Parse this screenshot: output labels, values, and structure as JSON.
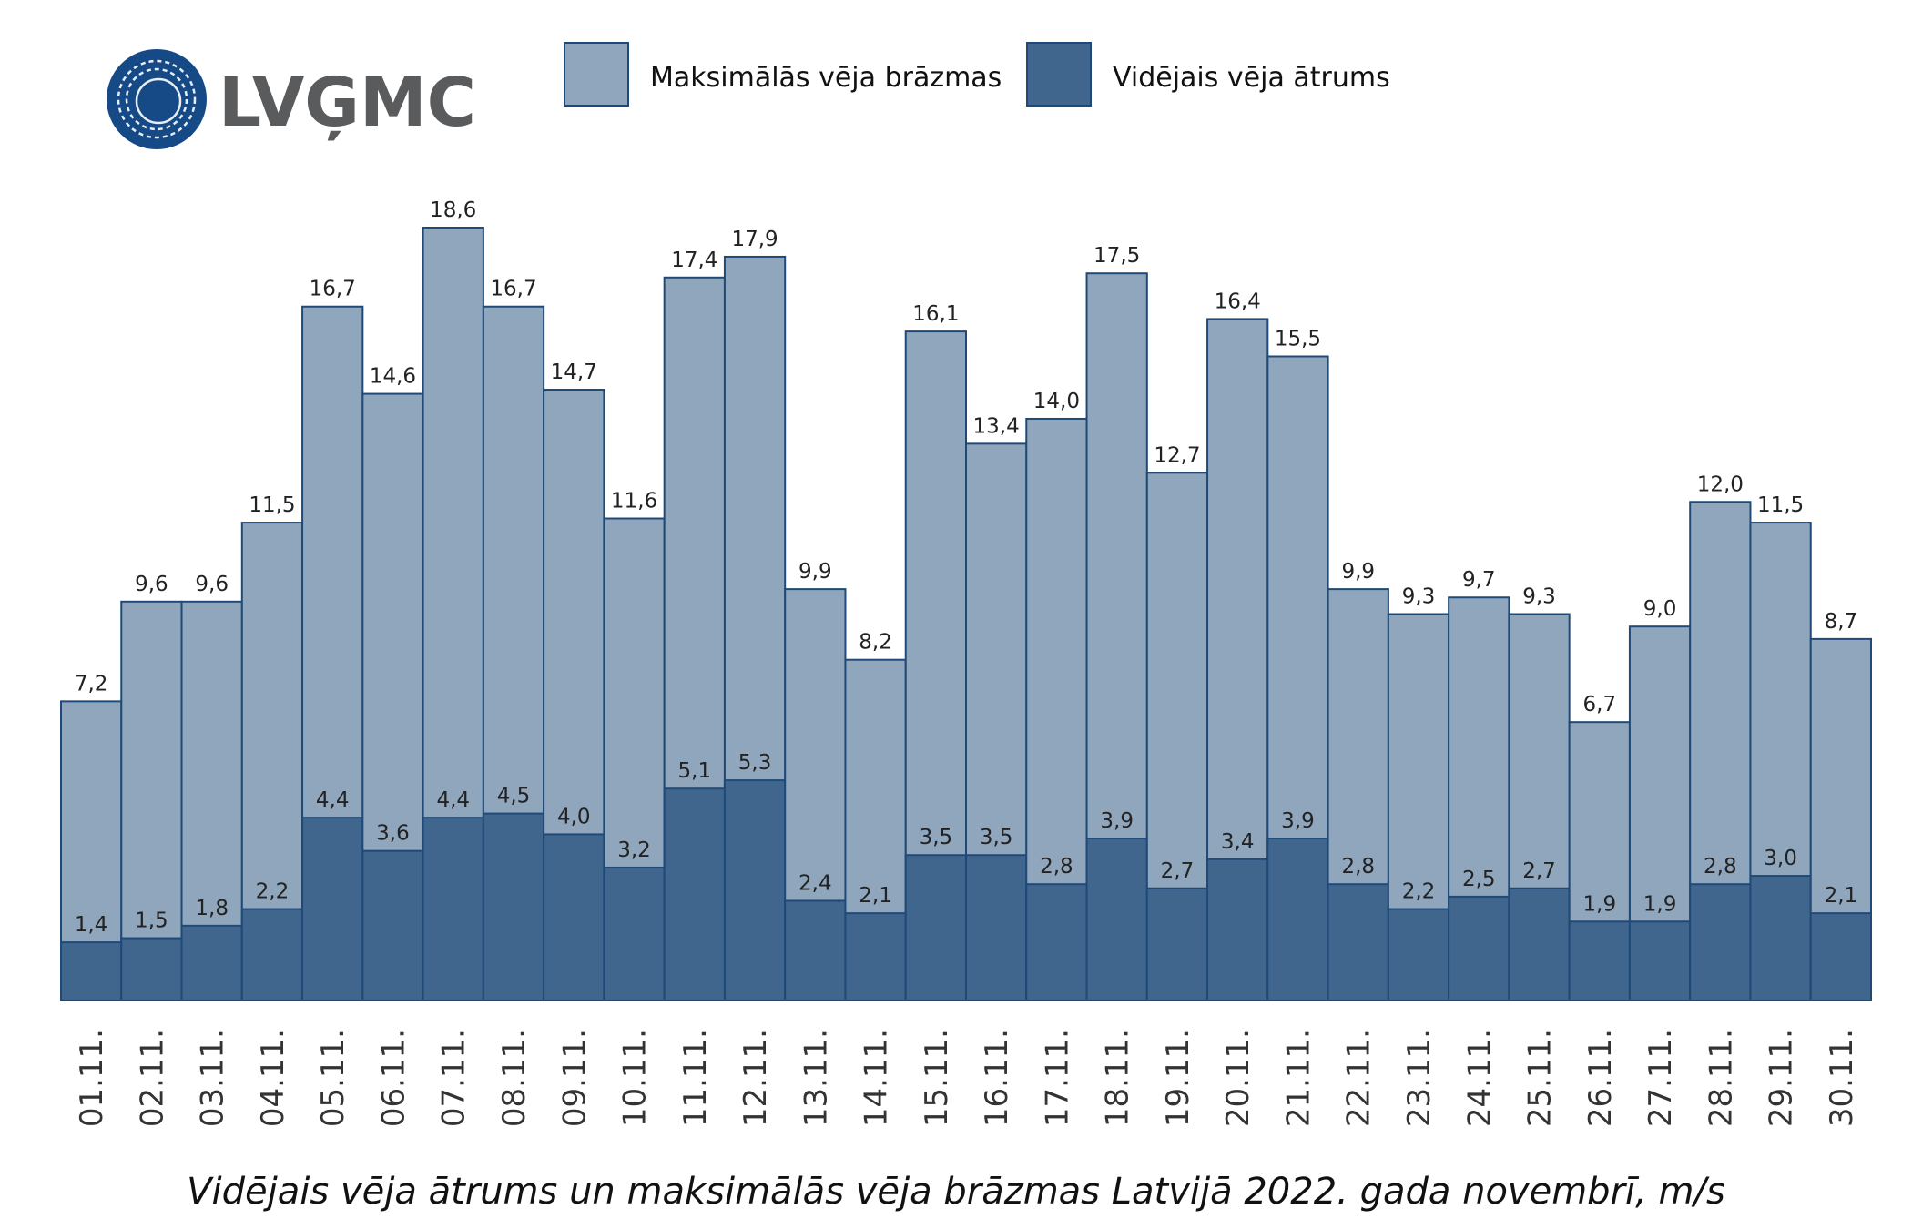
{
  "logo": {
    "text": "LVĢMC",
    "color": "#154a87",
    "text_color": "#5a5b5d"
  },
  "chart_data": {
    "type": "bar",
    "title": "Vidējais vēja ātrums un maksimālās vēja brāzmas Latvijā 2022. gada novembrī, m/s",
    "legend_position": "top",
    "grid": false,
    "ylim": [
      0,
      18.6
    ],
    "categories": [
      "01.11.",
      "02.11.",
      "03.11.",
      "04.11.",
      "05.11.",
      "06.11.",
      "07.11.",
      "08.11.",
      "09.11.",
      "10.11.",
      "11.11.",
      "12.11.",
      "13.11.",
      "14.11.",
      "15.11.",
      "16.11.",
      "17.11.",
      "18.11.",
      "19.11.",
      "20.11.",
      "21.11.",
      "22.11.",
      "23.11.",
      "24.11.",
      "25.11.",
      "26.11.",
      "27.11.",
      "28.11.",
      "29.11.",
      "30.11."
    ],
    "series": [
      {
        "name": "Maksimālās vēja brāzmas",
        "color": "#90a6bd",
        "values": [
          7.2,
          9.6,
          9.6,
          11.5,
          16.7,
          14.6,
          18.6,
          16.7,
          14.7,
          11.6,
          17.4,
          17.9,
          9.9,
          8.2,
          16.1,
          13.4,
          14.0,
          17.5,
          12.7,
          16.4,
          15.5,
          9.9,
          9.3,
          9.7,
          9.3,
          6.7,
          9.0,
          12.0,
          11.5,
          8.7
        ]
      },
      {
        "name": "Vidējais vēja ātrums",
        "color": "#41668d",
        "values": [
          1.4,
          1.5,
          1.8,
          2.2,
          4.4,
          3.6,
          4.4,
          4.5,
          4.0,
          3.2,
          5.1,
          5.3,
          2.4,
          2.1,
          3.5,
          3.5,
          2.8,
          3.9,
          2.7,
          3.4,
          3.9,
          2.8,
          2.2,
          2.5,
          2.7,
          1.9,
          1.9,
          2.8,
          3.0,
          2.1
        ]
      }
    ],
    "decimal_separator": ","
  }
}
